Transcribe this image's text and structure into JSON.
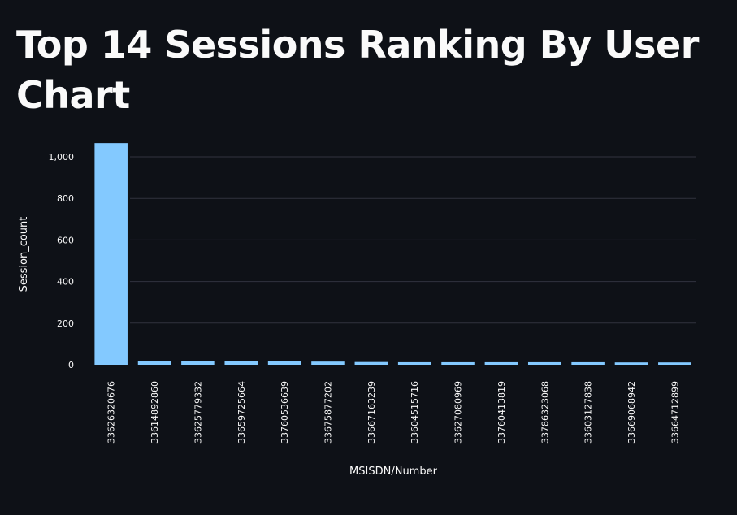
{
  "page": {
    "title": "Top 14 Sessions Ranking By User Chart"
  },
  "colors": {
    "background": "#0e1117",
    "bar": "#83c9ff",
    "grid": "#31333f",
    "text": "#fafafa"
  },
  "chart_data": {
    "type": "bar",
    "title": "",
    "xlabel": "MSISDN/Number",
    "ylabel": "Session_count",
    "ylim": [
      0,
      1090
    ],
    "yticks": [
      0,
      200,
      400,
      600,
      800,
      1000
    ],
    "ytick_labels": [
      "0",
      "200",
      "400",
      "600",
      "800",
      "1,000"
    ],
    "grid": true,
    "legend": "none",
    "categories": [
      "33626320676",
      "33614892860",
      "33625779332",
      "33659725664",
      "33760536639",
      "33675877202",
      "33667163239",
      "33604515716",
      "33627080969",
      "33760413819",
      "33786323068",
      "33603127838",
      "33669068942",
      "33664712899"
    ],
    "values": [
      1066,
      18,
      17,
      17,
      16,
      15,
      13,
      12,
      12,
      12,
      12,
      12,
      11,
      11
    ]
  }
}
